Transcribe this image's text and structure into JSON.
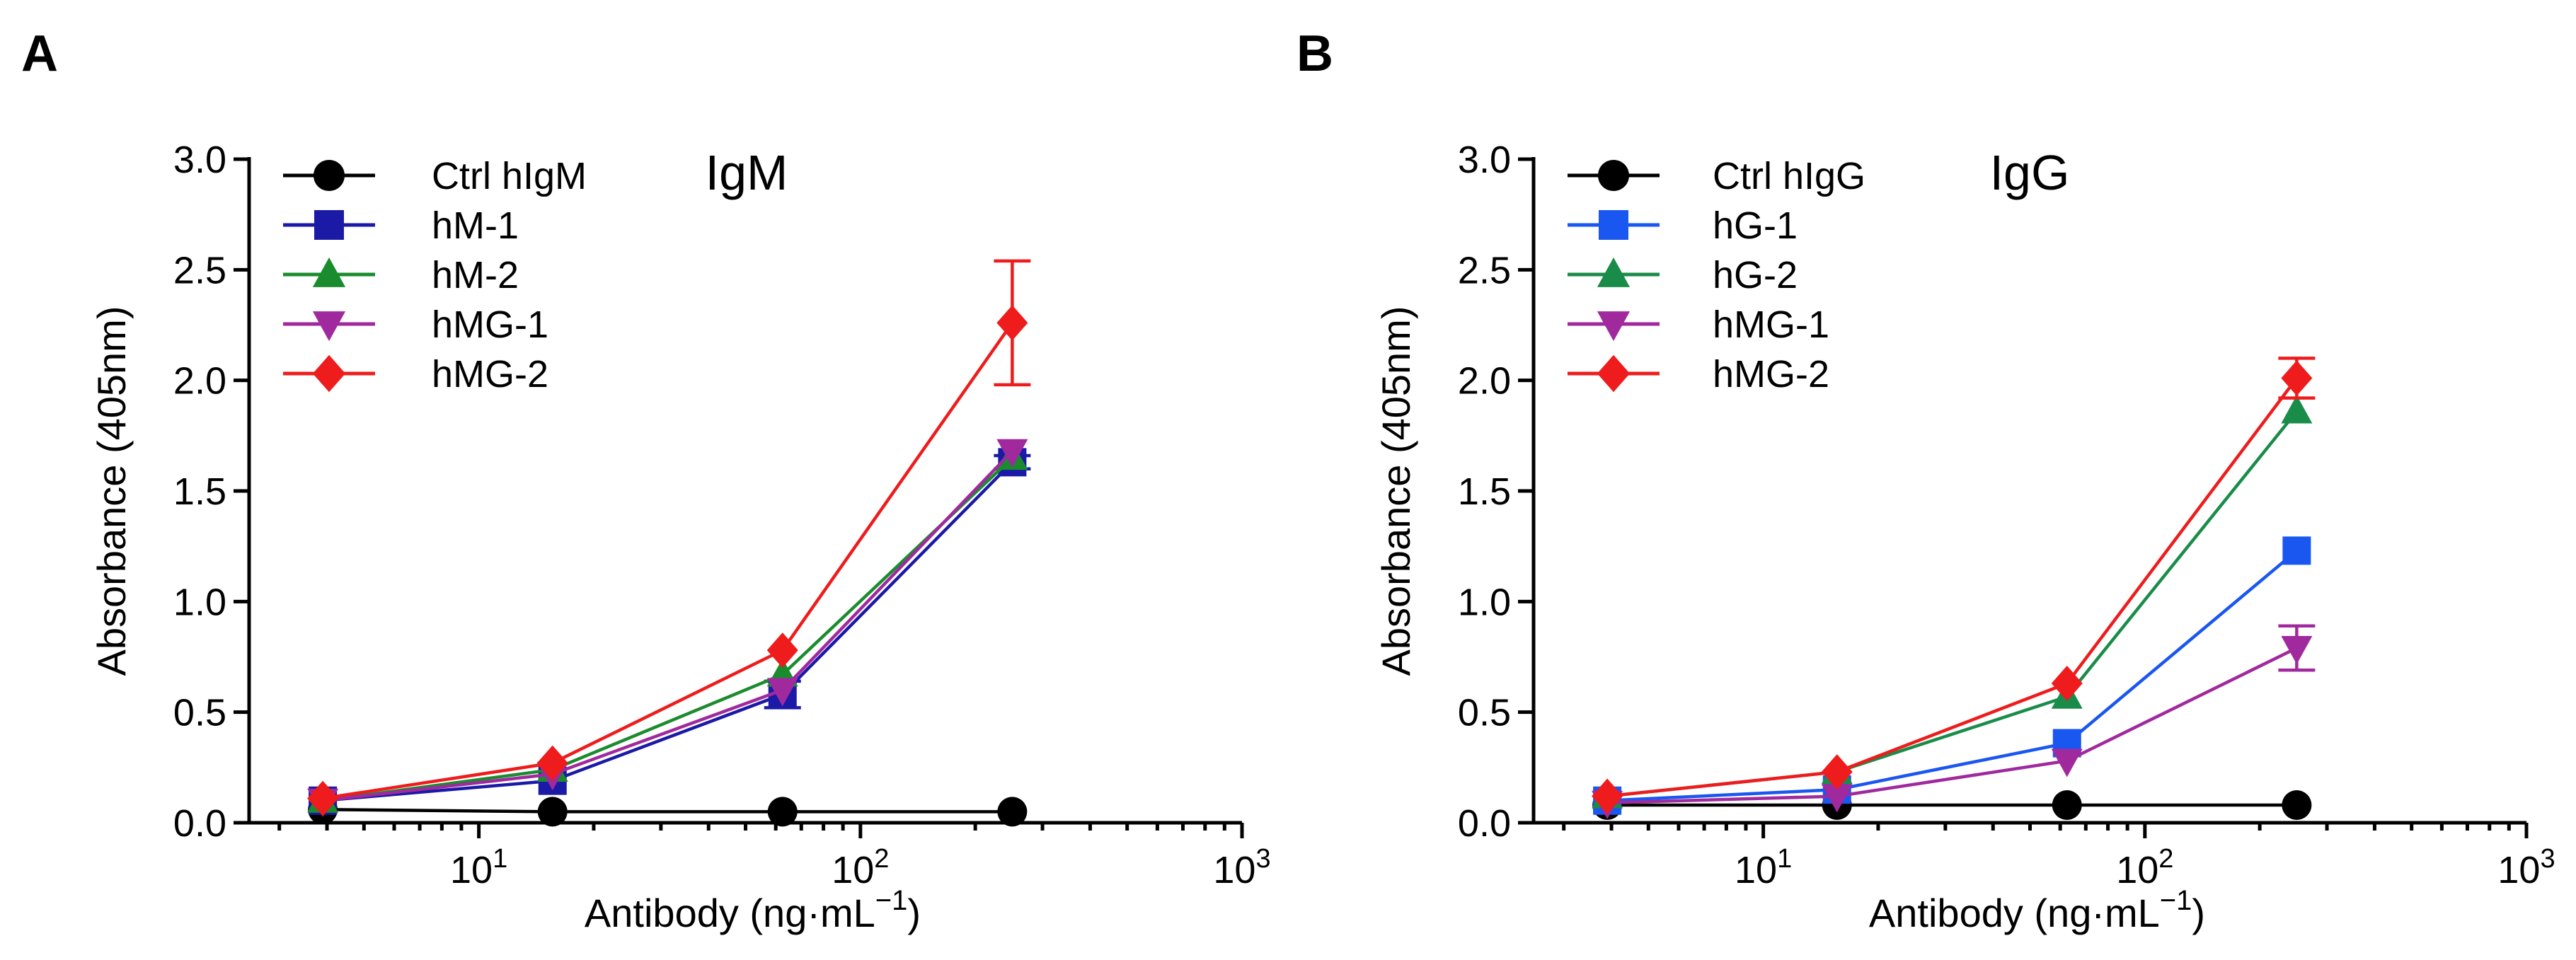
{
  "chart_data": [
    {
      "panel_label": "A",
      "type": "line",
      "title": "IgM",
      "xlabel_main": "Antibody (ng·mL",
      "xlabel_sup": "−1",
      "xlabel_close": ")",
      "ylabel": "Absorbance (405nm)",
      "xscale": "log",
      "xlim": [
        2.5,
        1000
      ],
      "ylim": [
        0,
        3
      ],
      "yticks": [
        "0.0",
        "0.5",
        "1.0",
        "1.5",
        "2.0",
        "2.5",
        "3.0"
      ],
      "xticks": [
        {
          "base": "10",
          "exp": "1"
        },
        {
          "base": "10",
          "exp": "2"
        },
        {
          "base": "10",
          "exp": "3"
        }
      ],
      "x": [
        3.9,
        15.6,
        62.5,
        250
      ],
      "legend_position": "top-left",
      "series": [
        {
          "name": "Ctrl hIgM",
          "color": "#000000",
          "marker": "circle",
          "values": [
            0.06,
            0.05,
            0.05,
            0.05
          ],
          "errors": [
            0,
            0,
            0,
            0
          ]
        },
        {
          "name": "hM-1",
          "color": "#1a1aa6",
          "marker": "square",
          "values": [
            0.1,
            0.19,
            0.58,
            1.63
          ],
          "errors": [
            0,
            0,
            0.06,
            0.03
          ]
        },
        {
          "name": "hM-2",
          "color": "#1a8c2e",
          "marker": "triangle-up",
          "values": [
            0.1,
            0.24,
            0.67,
            1.65
          ],
          "errors": [
            0,
            0,
            0,
            0
          ]
        },
        {
          "name": "hMG-1",
          "color": "#a0299e",
          "marker": "triangle-down",
          "values": [
            0.1,
            0.22,
            0.6,
            1.68
          ],
          "errors": [
            0,
            0,
            0,
            0
          ]
        },
        {
          "name": "hMG-2",
          "color": "#ee1c1c",
          "marker": "diamond",
          "values": [
            0.11,
            0.27,
            0.78,
            2.26
          ],
          "errors": [
            0,
            0,
            0,
            0.28
          ]
        }
      ]
    },
    {
      "panel_label": "B",
      "type": "line",
      "title": "IgG",
      "xlabel_main": "Antibody (ng·mL",
      "xlabel_sup": "−1",
      "xlabel_close": ")",
      "ylabel": "Absorbance (405nm)",
      "xscale": "log",
      "xlim": [
        2.5,
        1000
      ],
      "ylim": [
        0,
        3
      ],
      "yticks": [
        "0.0",
        "0.5",
        "1.0",
        "1.5",
        "2.0",
        "2.5",
        "3.0"
      ],
      "xticks": [
        {
          "base": "10",
          "exp": "1"
        },
        {
          "base": "10",
          "exp": "2"
        },
        {
          "base": "10",
          "exp": "3"
        }
      ],
      "x": [
        3.9,
        15.6,
        62.5,
        250
      ],
      "legend_position": "top-left",
      "series": [
        {
          "name": "Ctrl hIgG",
          "color": "#000000",
          "marker": "circle",
          "values": [
            0.08,
            0.08,
            0.08,
            0.08
          ],
          "errors": [
            0,
            0,
            0,
            0
          ]
        },
        {
          "name": "hG-1",
          "color": "#1a56f0",
          "marker": "square",
          "values": [
            0.1,
            0.15,
            0.36,
            1.23
          ],
          "errors": [
            0,
            0,
            0,
            0
          ]
        },
        {
          "name": "hG-2",
          "color": "#1a8c4a",
          "marker": "triangle-up",
          "values": [
            0.12,
            0.23,
            0.57,
            1.86
          ],
          "errors": [
            0,
            0,
            0,
            0
          ]
        },
        {
          "name": "hMG-1",
          "color": "#a0299e",
          "marker": "triangle-down",
          "values": [
            0.09,
            0.12,
            0.28,
            0.79
          ],
          "errors": [
            0,
            0,
            0,
            0.1
          ]
        },
        {
          "name": "hMG-2",
          "color": "#ee1c1c",
          "marker": "diamond",
          "values": [
            0.12,
            0.23,
            0.63,
            2.01
          ],
          "errors": [
            0,
            0,
            0,
            0.09
          ]
        }
      ]
    }
  ]
}
